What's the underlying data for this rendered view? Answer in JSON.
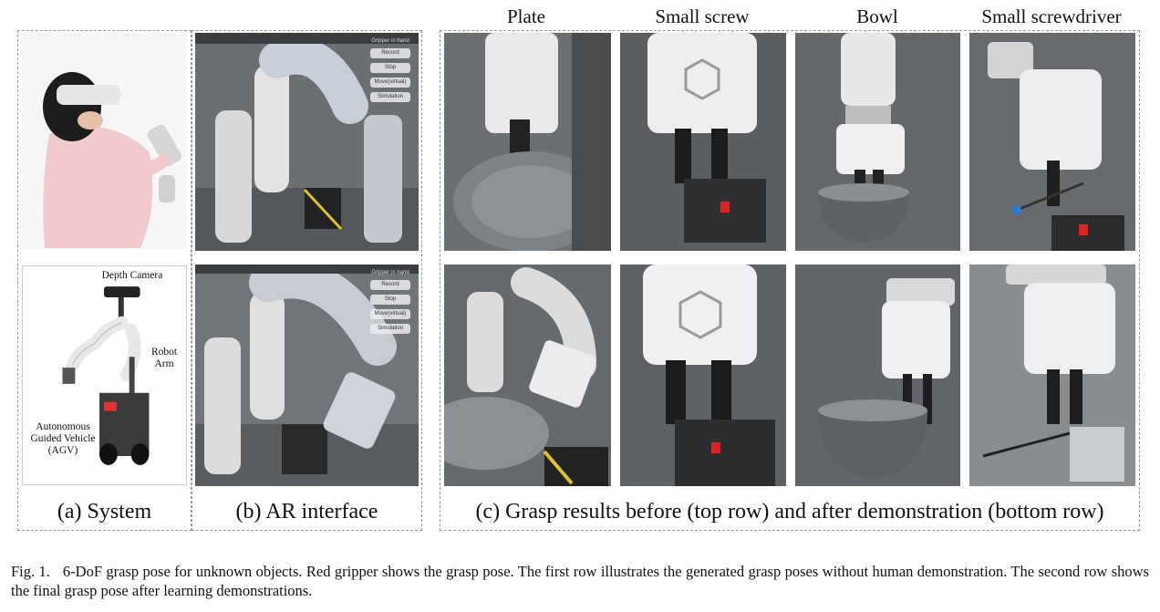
{
  "column_headers": [
    "Plate",
    "Small screw",
    "Bowl",
    "Small screwdriver"
  ],
  "panel_a": {
    "caption": "(a) System",
    "labels": {
      "depth_camera": "Depth Camera",
      "robot_arm": "Robot Arm",
      "agv": "Autonomous Guided Vehicle (AGV)"
    }
  },
  "panel_b": {
    "caption": "(b) AR interface",
    "ar_menu": {
      "title": "Gripper in hand",
      "buttons": [
        "Record",
        "Stop",
        "Move(virtual)",
        "Simulation"
      ]
    }
  },
  "panel_c": {
    "caption": "(c) Grasp results before (top row) and after demonstration (bottom row)"
  },
  "figure_caption": {
    "label": "Fig. 1.",
    "text": "6-DoF grasp pose for unknown objects. Red gripper shows the grasp pose. The first row illustrates the generated grasp poses without human demonstration. The second row shows the final grasp pose after learning demonstrations."
  }
}
